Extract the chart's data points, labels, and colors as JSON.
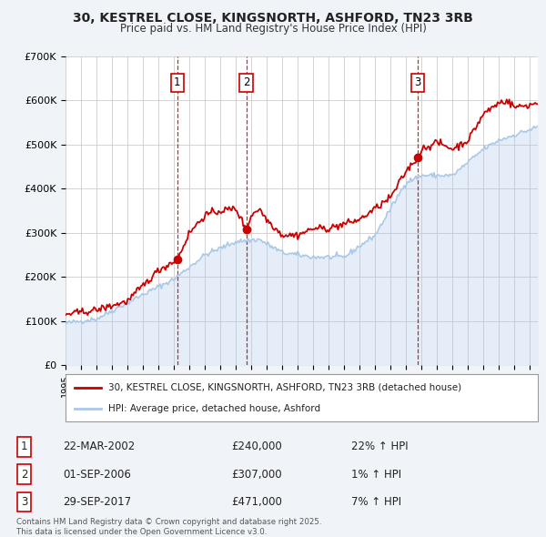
{
  "title": "30, KESTREL CLOSE, KINGSNORTH, ASHFORD, TN23 3RB",
  "subtitle": "Price paid vs. HM Land Registry's House Price Index (HPI)",
  "hpi_label": "HPI: Average price, detached house, Ashford",
  "property_label": "30, KESTREL CLOSE, KINGSNORTH, ASHFORD, TN23 3RB (detached house)",
  "property_color": "#cc0000",
  "hpi_color": "#aac8e8",
  "sale_marker_color": "#cc0000",
  "sale_vline_color": "#cc0000",
  "ylim": [
    0,
    700000
  ],
  "yticks": [
    0,
    100000,
    200000,
    300000,
    400000,
    500000,
    600000,
    700000
  ],
  "ytick_labels": [
    "£0",
    "£100K",
    "£200K",
    "£300K",
    "£400K",
    "£500K",
    "£600K",
    "£700K"
  ],
  "xlim_start": 1995.0,
  "xlim_end": 2025.5,
  "sales": [
    {
      "label": "1",
      "date_str": "22-MAR-2002",
      "year": 2002.22,
      "price": 240000,
      "hpi_pct": "22%",
      "direction": "↑"
    },
    {
      "label": "2",
      "date_str": "01-SEP-2006",
      "year": 2006.67,
      "price": 307000,
      "hpi_pct": "1%",
      "direction": "↑"
    },
    {
      "label": "3",
      "date_str": "29-SEP-2017",
      "year": 2017.75,
      "price": 471000,
      "hpi_pct": "7%",
      "direction": "↑"
    }
  ],
  "hpi_key_x": [
    1995,
    1997,
    2000,
    2002,
    2004,
    2006,
    2007.5,
    2009,
    2011,
    2013,
    2015,
    2017,
    2018,
    2020,
    2022,
    2023,
    2025.5
  ],
  "hpi_key_y": [
    95000,
    105000,
    160000,
    195000,
    250000,
    280000,
    285000,
    255000,
    245000,
    245000,
    295000,
    415000,
    430000,
    430000,
    490000,
    510000,
    540000
  ],
  "prop_key_x": [
    1995,
    1997,
    1999,
    2001,
    2002.22,
    2003,
    2004,
    2005,
    2006,
    2006.67,
    2007,
    2007.5,
    2008,
    2009,
    2010,
    2011,
    2012,
    2013,
    2014,
    2015,
    2016,
    2017,
    2017.75,
    2018,
    2019,
    2020,
    2021,
    2022,
    2023,
    2023.5,
    2024,
    2025,
    2025.5
  ],
  "prop_key_y": [
    115000,
    125000,
    145000,
    215000,
    240000,
    300000,
    340000,
    350000,
    355000,
    307000,
    340000,
    355000,
    330000,
    295000,
    295000,
    310000,
    310000,
    320000,
    330000,
    355000,
    380000,
    440000,
    471000,
    490000,
    505000,
    490000,
    510000,
    570000,
    595000,
    600000,
    585000,
    590000,
    595000
  ],
  "footnote": "Contains HM Land Registry data © Crown copyright and database right 2025.\nThis data is licensed under the Open Government Licence v3.0.",
  "background_color": "#f0f4f8",
  "plot_background": "#ffffff",
  "grid_color": "#cccccc"
}
